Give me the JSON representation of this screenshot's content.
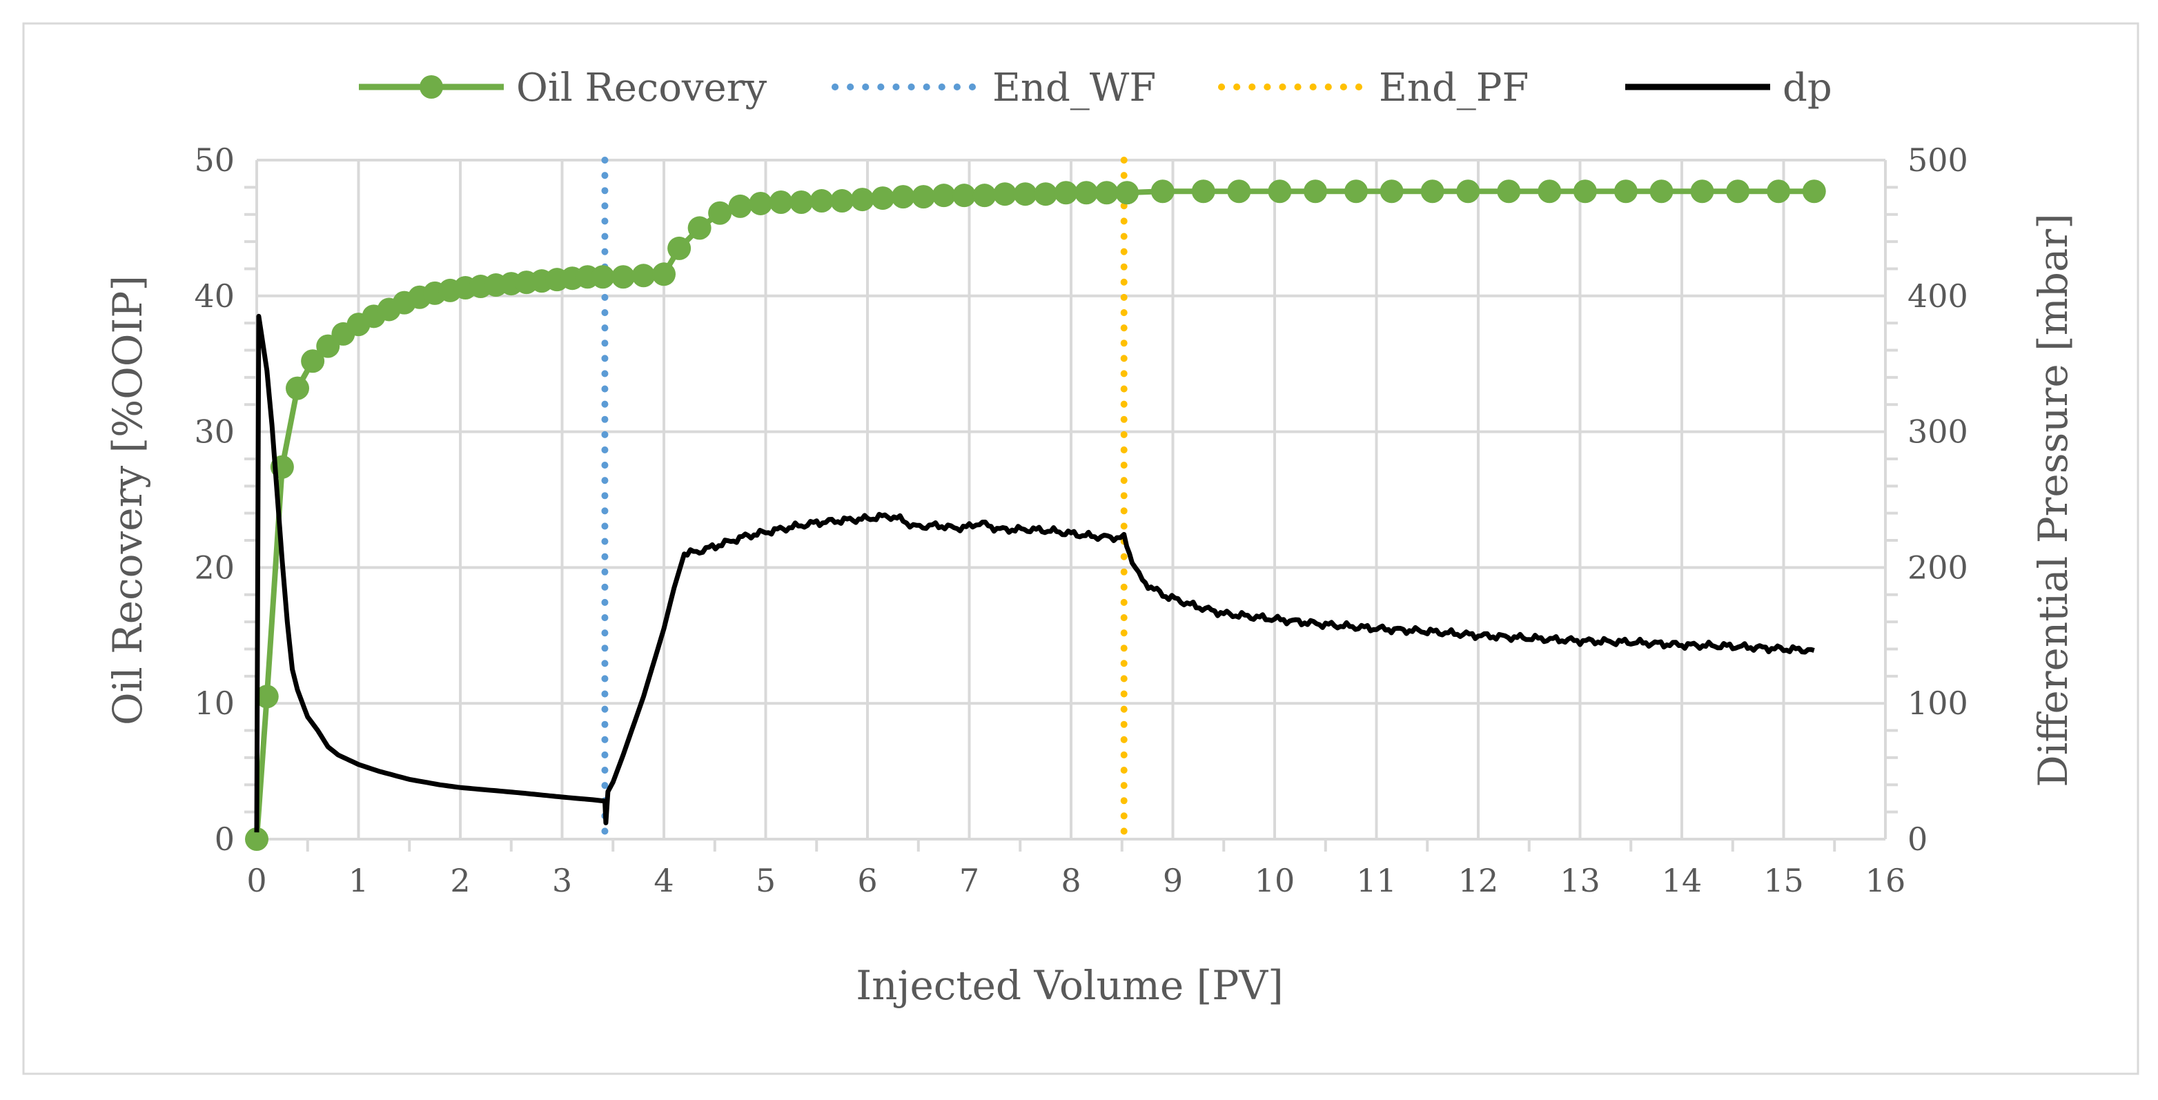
{
  "chart_data": {
    "type": "line",
    "title": "",
    "xlabel": "Injected Volume [PV]",
    "ylabel": "Oil Recovery [%OOIP]",
    "y2label": "Differential Pressure [mbar]",
    "xlim": [
      0,
      16
    ],
    "ylim": [
      0,
      50
    ],
    "y2lim": [
      0,
      500
    ],
    "xticks": [
      "0",
      "1",
      "2",
      "3",
      "4",
      "5",
      "6",
      "7",
      "8",
      "9",
      "10",
      "11",
      "12",
      "13",
      "14",
      "15",
      "16"
    ],
    "yticks": [
      "0",
      "10",
      "20",
      "30",
      "40",
      "50"
    ],
    "y2ticks": [
      "0",
      "100",
      "200",
      "300",
      "400",
      "500"
    ],
    "grid": true,
    "legend_position": "top",
    "legend": [
      "Oil Recovery",
      "End_WF",
      "End_PF",
      "dp"
    ],
    "colors": {
      "oil": "#70ad47",
      "end_wf": "#5b9bd5",
      "end_pf": "#ffc000",
      "dp": "#000000",
      "grid": "#d9d9d9",
      "text": "#595959"
    },
    "series": [
      {
        "name": "Oil Recovery",
        "axis": "left",
        "x": [
          0,
          0.1,
          0.25,
          0.4,
          0.55,
          0.7,
          0.85,
          1.0,
          1.15,
          1.3,
          1.45,
          1.6,
          1.75,
          1.9,
          2.05,
          2.2,
          2.35,
          2.5,
          2.65,
          2.8,
          2.95,
          3.1,
          3.25,
          3.4,
          3.6,
          3.8,
          4.0,
          4.15,
          4.35,
          4.55,
          4.75,
          4.95,
          5.15,
          5.35,
          5.55,
          5.75,
          5.95,
          6.15,
          6.35,
          6.55,
          6.75,
          6.95,
          7.15,
          7.35,
          7.55,
          7.75,
          7.95,
          8.15,
          8.35,
          8.55,
          8.9,
          9.3,
          9.65,
          10.05,
          10.4,
          10.8,
          11.15,
          11.55,
          11.9,
          12.3,
          12.7,
          13.05,
          13.45,
          13.8,
          14.2,
          14.55,
          14.95,
          15.3
        ],
        "values": [
          0,
          10.5,
          27.4,
          33.2,
          35.2,
          36.3,
          37.2,
          37.9,
          38.5,
          39.0,
          39.5,
          39.9,
          40.2,
          40.4,
          40.6,
          40.7,
          40.8,
          40.9,
          41.0,
          41.1,
          41.2,
          41.3,
          41.4,
          41.4,
          41.4,
          41.5,
          41.6,
          43.5,
          45.0,
          46.1,
          46.6,
          46.8,
          46.9,
          46.9,
          47.0,
          47.0,
          47.1,
          47.2,
          47.3,
          47.3,
          47.4,
          47.4,
          47.4,
          47.5,
          47.5,
          47.5,
          47.6,
          47.6,
          47.6,
          47.6,
          47.7,
          47.7,
          47.7,
          47.7,
          47.7,
          47.7,
          47.7,
          47.7,
          47.7,
          47.7,
          47.7,
          47.7,
          47.7,
          47.7,
          47.7,
          47.7,
          47.7,
          47.7
        ]
      },
      {
        "name": "dp",
        "axis": "right",
        "x": [
          0,
          0.02,
          0.05,
          0.1,
          0.15,
          0.2,
          0.25,
          0.3,
          0.35,
          0.4,
          0.5,
          0.6,
          0.7,
          0.8,
          1.0,
          1.2,
          1.5,
          1.8,
          2.0,
          2.3,
          2.6,
          3.0,
          3.3,
          3.42,
          3.43,
          3.45,
          3.5,
          3.6,
          3.8,
          4.0,
          4.1,
          4.2,
          4.35,
          4.6,
          4.8,
          5.0,
          5.2,
          5.5,
          5.8,
          6.0,
          6.2,
          6.35,
          6.45,
          6.7,
          6.85,
          7.0,
          7.1,
          7.3,
          7.6,
          7.8,
          8.0,
          8.2,
          8.45,
          8.52,
          8.6,
          8.7,
          8.9,
          9.2,
          9.5,
          10.0,
          10.5,
          11.0,
          11.5,
          12.0,
          12.5,
          13.0,
          13.5,
          14.0,
          14.5,
          15.0,
          15.3
        ],
        "values": [
          5,
          385,
          370,
          345,
          305,
          255,
          205,
          160,
          125,
          110,
          90,
          80,
          68,
          62,
          55,
          50,
          44,
          40,
          38,
          36,
          34,
          31,
          29,
          28,
          12,
          35,
          42,
          62,
          105,
          155,
          185,
          210,
          212,
          218,
          223,
          226,
          229,
          233,
          235,
          236,
          238,
          235,
          230,
          231,
          229,
          230,
          233,
          228,
          228,
          227,
          225,
          223,
          222,
          222,
          205,
          190,
          180,
          172,
          166,
          162,
          158,
          155,
          153,
          150,
          148,
          146,
          145,
          143,
          142,
          140,
          139
        ]
      }
    ],
    "vlines": [
      {
        "name": "End_WF",
        "x": 3.42,
        "style": "dotted"
      },
      {
        "name": "End_PF",
        "x": 8.52,
        "style": "dotted"
      }
    ]
  }
}
